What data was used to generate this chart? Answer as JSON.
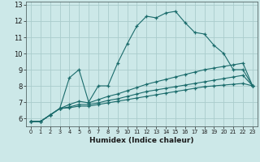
{
  "title": "",
  "xlabel": "Humidex (Indice chaleur)",
  "background_color": "#cce8e8",
  "grid_color": "#aacccc",
  "line_color": "#1a6b6b",
  "xlim": [
    -0.5,
    23.5
  ],
  "ylim": [
    5.5,
    13.2
  ],
  "xticks": [
    0,
    1,
    2,
    3,
    4,
    5,
    6,
    7,
    8,
    9,
    10,
    11,
    12,
    13,
    14,
    15,
    16,
    17,
    18,
    19,
    20,
    21,
    22,
    23
  ],
  "yticks": [
    6,
    7,
    8,
    9,
    10,
    11,
    12,
    13
  ],
  "lines": [
    {
      "x": [
        0,
        1,
        2,
        3,
        4,
        5,
        6,
        7,
        8,
        9,
        10,
        11,
        12,
        13,
        14,
        15,
        16,
        17,
        18,
        19,
        20,
        21,
        22,
        23
      ],
      "y": [
        5.8,
        5.8,
        6.2,
        6.6,
        8.5,
        9.0,
        7.0,
        8.0,
        8.0,
        9.4,
        10.6,
        11.7,
        12.3,
        12.2,
        12.5,
        12.6,
        11.9,
        11.3,
        11.2,
        10.5,
        10.0,
        9.0,
        9.0,
        8.0
      ]
    },
    {
      "x": [
        0,
        1,
        2,
        3,
        4,
        5,
        6,
        7,
        8,
        9,
        10,
        11,
        12,
        13,
        14,
        15,
        16,
        17,
        18,
        19,
        20,
        21,
        22,
        23
      ],
      "y": [
        5.8,
        5.8,
        6.2,
        6.6,
        6.85,
        7.05,
        6.95,
        7.15,
        7.35,
        7.5,
        7.7,
        7.9,
        8.1,
        8.25,
        8.4,
        8.55,
        8.7,
        8.85,
        9.0,
        9.1,
        9.2,
        9.3,
        9.4,
        8.0
      ]
    },
    {
      "x": [
        0,
        1,
        2,
        3,
        4,
        5,
        6,
        7,
        8,
        9,
        10,
        11,
        12,
        13,
        14,
        15,
        16,
        17,
        18,
        19,
        20,
        21,
        22,
        23
      ],
      "y": [
        5.8,
        5.8,
        6.2,
        6.6,
        6.7,
        6.85,
        6.85,
        6.95,
        7.1,
        7.2,
        7.35,
        7.5,
        7.65,
        7.75,
        7.85,
        7.95,
        8.05,
        8.15,
        8.25,
        8.35,
        8.45,
        8.55,
        8.65,
        8.0
      ]
    },
    {
      "x": [
        0,
        1,
        2,
        3,
        4,
        5,
        6,
        7,
        8,
        9,
        10,
        11,
        12,
        13,
        14,
        15,
        16,
        17,
        18,
        19,
        20,
        21,
        22,
        23
      ],
      "y": [
        5.8,
        5.8,
        6.2,
        6.6,
        6.65,
        6.75,
        6.75,
        6.85,
        6.95,
        7.05,
        7.15,
        7.25,
        7.35,
        7.45,
        7.55,
        7.65,
        7.75,
        7.85,
        7.95,
        8.0,
        8.05,
        8.1,
        8.15,
        8.0
      ]
    }
  ]
}
